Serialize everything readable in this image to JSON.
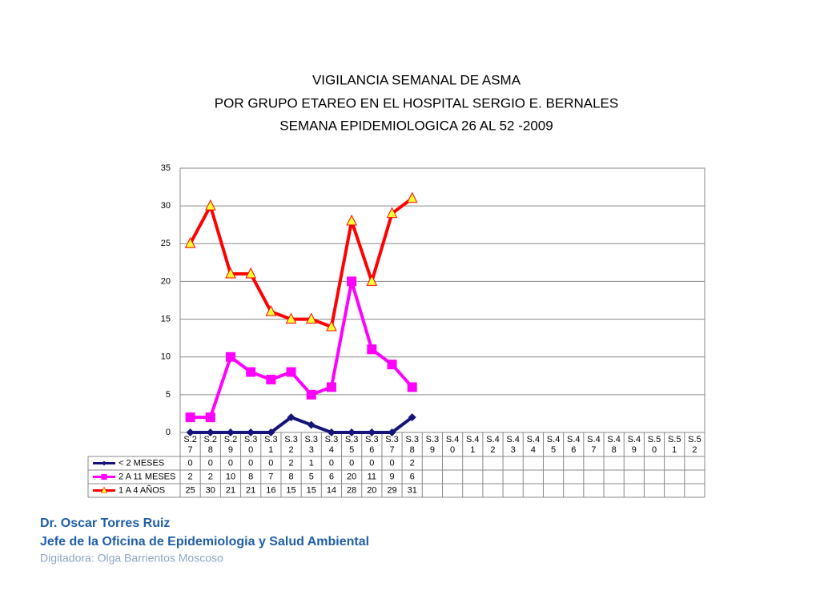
{
  "chart_data": {
    "type": "line",
    "title": [
      "VIGILANCIA SEMANAL DE ASMA",
      "POR GRUPO ETAREO EN EL HOSPITAL SERGIO E. BERNALES",
      "SEMANA EPIDEMIOLOGICA 26 AL 52 -2009"
    ],
    "categories": [
      "S.27",
      "S.28",
      "S.29",
      "S.30",
      "S.31",
      "S.32",
      "S.33",
      "S.34",
      "S.35",
      "S.36",
      "S.37",
      "S.38",
      "S.39",
      "S.40",
      "S.41",
      "S.42",
      "S.43",
      "S.44",
      "S.45",
      "S.46",
      "S.47",
      "S.48",
      "S.49",
      "S.50",
      "S.51",
      "S.52"
    ],
    "series": [
      {
        "name": "< 2 MESES",
        "color": "#14147a",
        "marker": "diamond",
        "marker_color": "#14147a",
        "values": [
          0,
          0,
          0,
          0,
          0,
          2,
          1,
          0,
          0,
          0,
          0,
          2,
          null,
          null,
          null,
          null,
          null,
          null,
          null,
          null,
          null,
          null,
          null,
          null,
          null,
          null
        ]
      },
      {
        "name": "2 A 11 MESES",
        "color": "#ff00ff",
        "marker": "square",
        "marker_color": "#ff00ff",
        "values": [
          2,
          2,
          10,
          8,
          7,
          8,
          5,
          6,
          20,
          11,
          9,
          6,
          null,
          null,
          null,
          null,
          null,
          null,
          null,
          null,
          null,
          null,
          null,
          null,
          null,
          null
        ]
      },
      {
        "name": "1 A 4 AÑOS",
        "color": "#ff0000",
        "marker": "triangle",
        "marker_color": "#ffff33",
        "values": [
          25,
          30,
          21,
          21,
          16,
          15,
          15,
          14,
          28,
          20,
          29,
          31,
          null,
          null,
          null,
          null,
          null,
          null,
          null,
          null,
          null,
          null,
          null,
          null,
          null,
          null
        ]
      }
    ],
    "ylim": [
      0,
      35
    ],
    "yticks": [
      0,
      5,
      10,
      15,
      20,
      25,
      30,
      35
    ],
    "grid": true
  },
  "footer": {
    "author": "Dr.  Oscar  Torres Ruiz",
    "role": "Jefe de la Oficina de Epidemiologia y  Salud Ambiental",
    "typist": "Digitadora: Olga Barrientos Moscoso"
  }
}
